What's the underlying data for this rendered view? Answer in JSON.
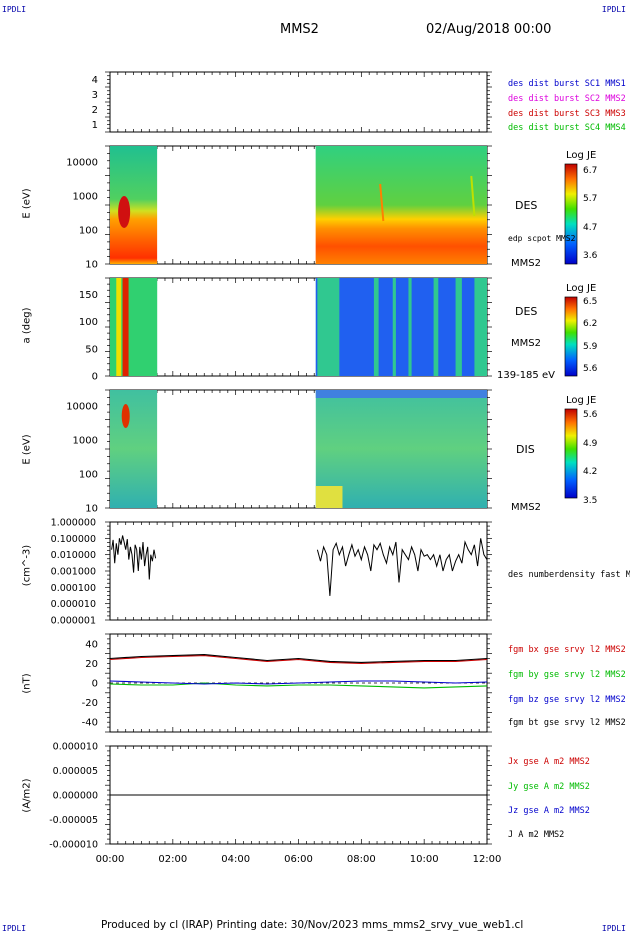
{
  "corners": {
    "tl": "IPDLI",
    "tr": "IPDLI",
    "bl": "IPDLI",
    "br": "IPDLI"
  },
  "header": {
    "spacecraft": "MMS2",
    "datetime": "02/Aug/2018 00:00"
  },
  "footer": {
    "text": "Produced by cl (IRAP)   Printing date: 30/Nov/2023   mms_mms2_srvy_vue_web1.cl"
  },
  "colors": {
    "red": "#cc0000",
    "green": "#00bb00",
    "blue": "#0000cc",
    "magenta": "#dd00dd",
    "black": "#000000"
  },
  "chart_data": [
    {
      "type": "scatter",
      "panel": "burst-availability",
      "x_ticks": [
        "00:00",
        "02:00",
        "04:00",
        "06:00",
        "08:00",
        "10:00",
        "12:00"
      ],
      "y_ticks": [
        "1",
        "2",
        "3",
        "4"
      ],
      "ylim": [
        0.5,
        4.5
      ],
      "legend": [
        {
          "name": "des dist burst SC1 MMS1",
          "color": "#0000cc"
        },
        {
          "name": "des dist burst SC2 MMS2",
          "color": "#dd00dd"
        },
        {
          "name": "des dist burst SC3 MMS3",
          "color": "#cc0000"
        },
        {
          "name": "des dist burst SC4 MMS4",
          "color": "#00bb00"
        }
      ]
    },
    {
      "type": "heatmap",
      "panel": "des-energy",
      "ylabel": "E (eV)",
      "y_ticks": [
        "10",
        "100",
        "1000",
        "10000"
      ],
      "yscale": "log",
      "ylim": [
        10,
        30000
      ],
      "data_ranges_hours": [
        [
          0,
          1.5
        ],
        [
          6.55,
          12
        ]
      ],
      "colorbar": {
        "title": "Log JE",
        "ticks": [
          "6.7",
          "5.7",
          "4.7",
          "3.6"
        ],
        "range": [
          3.6,
          6.7
        ]
      },
      "labels": [
        "DES",
        "edp scpot MMS2",
        "MMS2"
      ]
    },
    {
      "type": "heatmap",
      "panel": "des-pitch",
      "ylabel": "a (deg)",
      "y_ticks": [
        "0",
        "50",
        "100",
        "150"
      ],
      "ylim": [
        0,
        180
      ],
      "data_ranges_hours": [
        [
          0,
          1.5
        ],
        [
          6.55,
          12
        ]
      ],
      "colorbar": {
        "title": "Log JE",
        "ticks": [
          "6.5",
          "6.2",
          "5.9",
          "5.6"
        ],
        "range": [
          5.6,
          6.5
        ]
      },
      "labels": [
        "DES",
        "MMS2",
        "139-185 eV"
      ]
    },
    {
      "type": "heatmap",
      "panel": "dis-energy",
      "ylabel": "E (eV)",
      "y_ticks": [
        "10",
        "100",
        "1000",
        "10000"
      ],
      "yscale": "log",
      "ylim": [
        10,
        30000
      ],
      "data_ranges_hours": [
        [
          0,
          1.5
        ],
        [
          6.55,
          12
        ]
      ],
      "colorbar": {
        "title": "Log JE",
        "ticks": [
          "5.6",
          "4.9",
          "4.2",
          "3.5"
        ],
        "range": [
          3.5,
          5.6
        ]
      },
      "labels": [
        "DIS",
        "MMS2"
      ]
    },
    {
      "type": "line",
      "panel": "density",
      "ylabel": "(cm^-3)",
      "yscale": "log",
      "y_ticks": [
        "1.000000",
        "0.100000",
        "0.010000",
        "0.001000",
        "0.000100",
        "0.000010",
        "0.000001"
      ],
      "ylim": [
        1e-06,
        1
      ],
      "series": [
        {
          "name": "des numberdensity fast M",
          "color": "#000000",
          "x": [
            0.05,
            0.1,
            0.15,
            0.2,
            0.25,
            0.3,
            0.35,
            0.4,
            0.45,
            0.5,
            0.55,
            0.6,
            0.65,
            0.7,
            0.75,
            0.8,
            0.85,
            0.9,
            0.95,
            1.0,
            1.05,
            1.1,
            1.15,
            1.2,
            1.25,
            1.3,
            1.35,
            1.4,
            1.45,
            6.6,
            6.7,
            6.8,
            6.9,
            7.0,
            7.1,
            7.2,
            7.3,
            7.4,
            7.5,
            7.6,
            7.7,
            7.8,
            7.9,
            8.0,
            8.1,
            8.2,
            8.3,
            8.4,
            8.5,
            8.6,
            8.7,
            8.8,
            8.9,
            9.0,
            9.1,
            9.2,
            9.3,
            9.4,
            9.5,
            9.6,
            9.7,
            9.8,
            9.9,
            10.0,
            10.1,
            10.2,
            10.3,
            10.4,
            10.5,
            10.6,
            10.7,
            10.8,
            10.9,
            11.0,
            11.1,
            11.2,
            11.3,
            11.4,
            11.5,
            11.6,
            11.7,
            11.8,
            11.9,
            12.0
          ],
          "y": [
            0.02,
            0.08,
            0.003,
            0.05,
            0.01,
            0.1,
            0.04,
            0.15,
            0.06,
            0.02,
            0.09,
            0.005,
            0.03,
            0.01,
            0.0008,
            0.04,
            0.02,
            0.001,
            0.03,
            0.005,
            0.06,
            0.002,
            0.01,
            0.03,
            0.0003,
            0.01,
            0.004,
            0.02,
            0.006,
            0.02,
            0.004,
            0.03,
            0.01,
            3e-05,
            0.02,
            0.05,
            0.01,
            0.03,
            0.002,
            0.01,
            0.04,
            0.008,
            0.02,
            0.005,
            0.03,
            0.01,
            0.001,
            0.04,
            0.02,
            0.05,
            0.01,
            0.003,
            0.03,
            0.01,
            0.06,
            0.0002,
            0.02,
            0.01,
            0.005,
            0.03,
            0.01,
            0.001,
            0.02,
            0.008,
            0.01,
            0.005,
            0.01,
            0.002,
            0.01,
            0.001,
            0.005,
            0.01,
            0.001,
            0.004,
            0.01,
            0.003,
            0.06,
            0.02,
            0.01,
            0.04,
            0.002,
            0.1,
            0.01,
            0.005
          ]
        }
      ]
    },
    {
      "type": "line",
      "panel": "fgm",
      "ylabel": "(nT)",
      "y_ticks": [
        "40",
        "20",
        "0",
        "-20",
        "-40"
      ],
      "ylim": [
        -50,
        50
      ],
      "series": [
        {
          "name": "fgm bx gse srvy l2 MMS2",
          "color": "#cc0000",
          "x": [
            0,
            1,
            2,
            3,
            4,
            5,
            6,
            7,
            8,
            9,
            10,
            11,
            12
          ],
          "y": [
            24,
            26,
            27,
            28,
            25,
            22,
            24,
            21,
            20,
            21,
            22,
            22,
            24
          ]
        },
        {
          "name": "fgm by gse srvy l2 MMS2",
          "color": "#00bb00",
          "x": [
            0,
            1,
            2,
            3,
            4,
            5,
            6,
            7,
            8,
            9,
            10,
            11,
            12
          ],
          "y": [
            -1,
            -2,
            -2,
            0,
            -2,
            -3,
            -2,
            -2,
            -3,
            -4,
            -5,
            -4,
            -3
          ]
        },
        {
          "name": "fgm bz gse srvy l2 MMS2",
          "color": "#0000cc",
          "x": [
            0,
            1,
            2,
            3,
            4,
            5,
            6,
            7,
            8,
            9,
            10,
            11,
            12
          ],
          "y": [
            2,
            1,
            0,
            -1,
            0,
            -1,
            0,
            1,
            2,
            2,
            1,
            0,
            1
          ]
        },
        {
          "name": "fgm bt gse srvy l2 MMS2",
          "color": "#000000",
          "x": [
            0,
            1,
            2,
            3,
            4,
            5,
            6,
            7,
            8,
            9,
            10,
            11,
            12
          ],
          "y": [
            25,
            27,
            28,
            29,
            26,
            23,
            25,
            22,
            21,
            22,
            23,
            23,
            25
          ]
        }
      ]
    },
    {
      "type": "line",
      "panel": "current",
      "ylabel": "(A/m2)",
      "y_ticks": [
        "0.000010",
        "0.000005",
        "0.000000",
        "-0.000005",
        "-0.000010"
      ],
      "ylim": [
        -1e-05,
        1e-05
      ],
      "series": [
        {
          "name": "Jx gse A m2 MMS2",
          "color": "#cc0000",
          "x": [
            0,
            12
          ],
          "y": [
            0,
            0
          ]
        },
        {
          "name": "Jy gse A m2 MMS2",
          "color": "#00bb00",
          "x": [
            0,
            12
          ],
          "y": [
            0,
            0
          ]
        },
        {
          "name": "Jz gse A m2 MMS2",
          "color": "#0000cc",
          "x": [
            0,
            12
          ],
          "y": [
            0,
            0
          ]
        },
        {
          "name": "J A m2 MMS2",
          "color": "#000000",
          "x": [
            0,
            12
          ],
          "y": [
            0,
            0
          ]
        }
      ],
      "x_ticks": [
        "00:00",
        "02:00",
        "04:00",
        "06:00",
        "08:00",
        "10:00",
        "12:00"
      ]
    }
  ]
}
